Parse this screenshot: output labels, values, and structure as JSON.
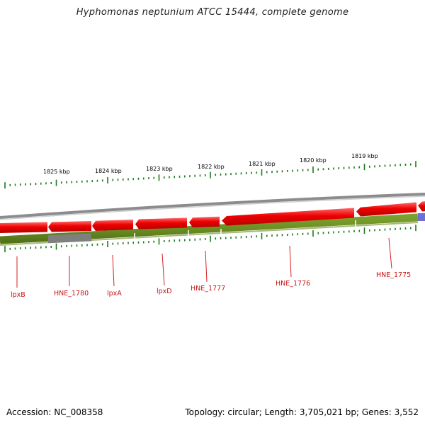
{
  "title": "Hyphomonas neptunium ATCC 15444, complete genome",
  "footer": {
    "accession": "Accession: NC_008358",
    "topology": "Topology: circular; Length: 3,705,021 bp; Genes: 3,552"
  },
  "kbp_labels": [
    "1825 kbp",
    "1824 kbp",
    "1823 kbp",
    "1822 kbp",
    "1821 kbp",
    "1820 kbp",
    "1819 kbp"
  ],
  "genes": [
    "lpxB",
    "HNE_1780",
    "lpxA",
    "lpxD",
    "HNE_1777",
    "HNE_1776",
    "HNE_1775"
  ],
  "colors": {
    "backbone": "#8c8c8c",
    "cds_strand": "#e80000",
    "gene_track": "#6b8e23",
    "gene_track_gray": "#7f7f7f",
    "rna": "#6f6fd8",
    "tick": "#1e7a1e",
    "label": "#c81414"
  }
}
